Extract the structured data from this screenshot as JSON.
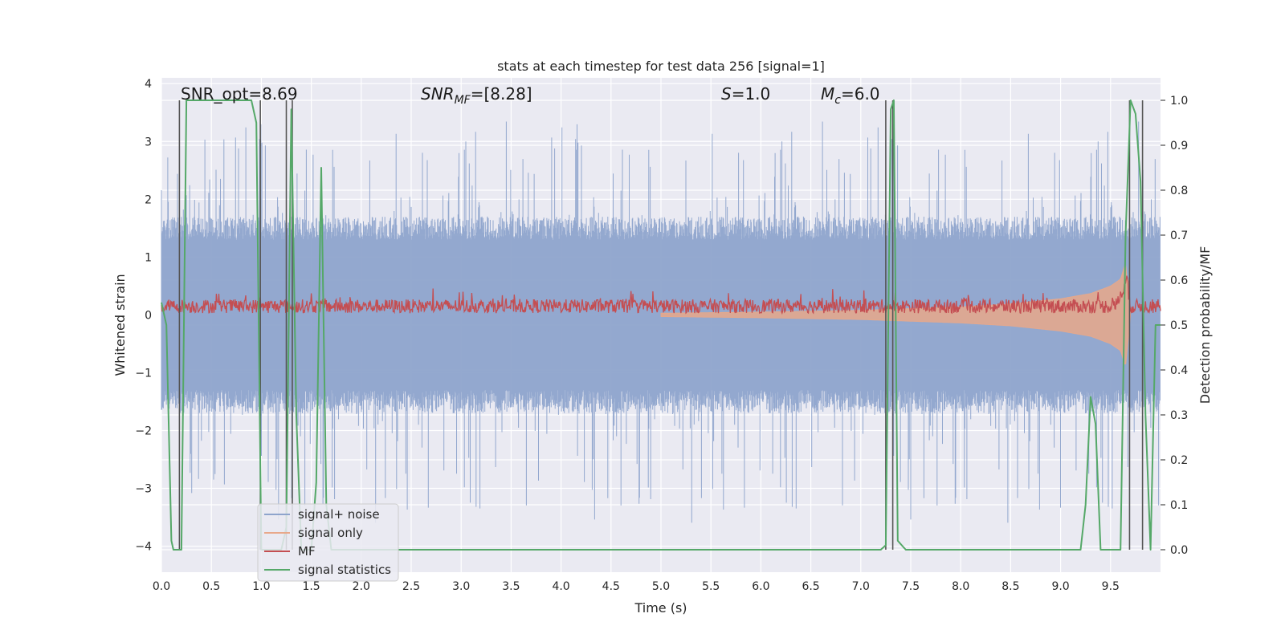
{
  "chart_data": {
    "type": "line",
    "title": "stats at each timestep for test data 256 [signal=1]",
    "xlabel": "Time (s)",
    "ylabel_left": "Whitened strain",
    "ylabel_right": "Detection probability/MF",
    "xlim": [
      0.0,
      10.0
    ],
    "ylim_left": [
      -4.45,
      4.1
    ],
    "ylim_right": [
      -0.05,
      1.05
    ],
    "x_ticks": [
      "0.0",
      "0.5",
      "1.0",
      "1.5",
      "2.0",
      "2.5",
      "3.0",
      "3.5",
      "4.0",
      "4.5",
      "5.0",
      "5.5",
      "6.0",
      "6.5",
      "7.0",
      "7.5",
      "8.0",
      "8.5",
      "9.0",
      "9.5"
    ],
    "y_left_ticks": [
      "4",
      "3",
      "2",
      "1",
      "0",
      "−1",
      "−2",
      "−3",
      "−4"
    ],
    "y_right_ticks": [
      "1.0",
      "0.9",
      "0.8",
      "0.7",
      "0.6",
      "0.5",
      "0.4",
      "0.3",
      "0.2",
      "0.1",
      "0.0"
    ],
    "grid": true,
    "annotations": {
      "snr_opt": "SNR_opt=8.69",
      "snr_mf": "SNR",
      "snr_mf_sub": "MF",
      "snr_mf_val": "=[8.28]",
      "s": "S",
      "s_val": "=1.0",
      "mc": "M",
      "mc_sub": "c",
      "mc_val": "=6.0"
    },
    "legend_position": "lower-left",
    "series": [
      {
        "name": "signal+ noise",
        "color": "#8ea4cc",
        "axis": "left",
        "description_values": "noise band approx ±1.5 with spikes to ±4"
      },
      {
        "name": "signal only",
        "color": "#e8a88a",
        "axis": "left",
        "envelope": {
          "x": [
            5.0,
            6.0,
            7.0,
            8.0,
            8.5,
            9.0,
            9.3,
            9.5,
            9.6,
            9.65,
            9.7
          ],
          "amp": [
            0.03,
            0.05,
            0.08,
            0.14,
            0.19,
            0.28,
            0.37,
            0.5,
            0.62,
            0.9,
            0.0
          ]
        }
      },
      {
        "name": "MF",
        "color": "#c44e52",
        "axis": "left",
        "base": 0.15,
        "noise": 0.12
      },
      {
        "name": "signal statistics",
        "color": "#55a868",
        "axis": "right",
        "x": [
          0.0,
          0.05,
          0.1,
          0.12,
          0.2,
          0.25,
          0.3,
          0.4,
          0.5,
          0.6,
          0.7,
          0.8,
          0.9,
          0.95,
          1.0,
          1.05,
          1.1,
          1.2,
          1.25,
          1.3,
          1.35,
          1.4,
          1.5,
          1.55,
          1.6,
          1.65,
          1.7,
          1.75,
          1.8,
          2.0,
          3.0,
          4.0,
          5.0,
          6.0,
          7.0,
          7.2,
          7.25,
          7.3,
          7.33,
          7.37,
          7.45,
          7.5,
          8.0,
          9.0,
          9.2,
          9.25,
          9.3,
          9.35,
          9.4,
          9.45,
          9.6,
          9.65,
          9.7,
          9.75,
          9.8,
          9.85,
          9.9,
          9.95,
          10.0
        ],
        "y": [
          0.55,
          0.5,
          0.02,
          0.0,
          0.0,
          1.0,
          1.0,
          1.0,
          1.0,
          1.0,
          1.0,
          1.0,
          1.0,
          0.95,
          0.0,
          0.0,
          0.0,
          0.0,
          0.05,
          0.98,
          0.3,
          0.0,
          0.0,
          0.15,
          0.85,
          0.1,
          0.0,
          0.0,
          0.0,
          0.0,
          0.0,
          0.0,
          0.0,
          0.0,
          0.0,
          0.0,
          0.01,
          0.98,
          1.0,
          0.02,
          0.0,
          0.0,
          0.0,
          0.0,
          0.0,
          0.1,
          0.34,
          0.28,
          0.0,
          0.0,
          0.0,
          0.7,
          1.0,
          0.97,
          0.82,
          0.3,
          0.0,
          0.5,
          0.5
        ]
      },
      {
        "name": "",
        "color": "#555555",
        "axis": "right",
        "kind": "vlines",
        "x": [
          0.18,
          0.99,
          1.25,
          1.31,
          7.25,
          7.32,
          9.69,
          9.82
        ]
      }
    ]
  }
}
